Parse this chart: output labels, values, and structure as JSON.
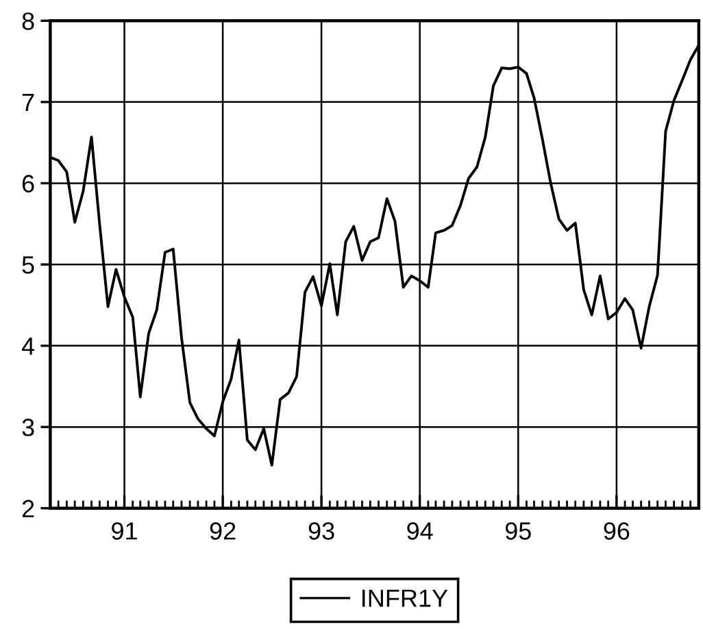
{
  "chart_data": {
    "type": "line",
    "x": [
      "1990-04",
      "1990-05",
      "1990-06",
      "1990-07",
      "1990-08",
      "1990-09",
      "1990-10",
      "1990-11",
      "1990-12",
      "1991-01",
      "1991-02",
      "1991-03",
      "1991-04",
      "1991-05",
      "1991-06",
      "1991-07",
      "1991-08",
      "1991-09",
      "1991-10",
      "1991-11",
      "1991-12",
      "1992-01",
      "1992-02",
      "1992-03",
      "1992-04",
      "1992-05",
      "1992-06",
      "1992-07",
      "1992-08",
      "1992-09",
      "1992-10",
      "1992-11",
      "1992-12",
      "1993-01",
      "1993-02",
      "1993-03",
      "1993-04",
      "1993-05",
      "1993-06",
      "1993-07",
      "1993-08",
      "1993-09",
      "1993-10",
      "1993-11",
      "1993-12",
      "1994-01",
      "1994-02",
      "1994-03",
      "1994-04",
      "1994-05",
      "1994-06",
      "1994-07",
      "1994-08",
      "1994-09",
      "1994-10",
      "1994-11",
      "1994-12",
      "1995-01",
      "1995-02",
      "1995-03",
      "1995-04",
      "1995-05",
      "1995-06",
      "1995-07",
      "1995-08",
      "1995-09",
      "1995-10",
      "1995-11",
      "1995-12",
      "1996-01",
      "1996-02",
      "1996-03",
      "1996-04",
      "1996-05",
      "1996-06",
      "1996-07",
      "1996-08",
      "1996-09",
      "1996-10",
      "1996-11"
    ],
    "series": [
      {
        "name": "INFR1Y",
        "color": "#000000",
        "values": [
          6.32,
          6.28,
          6.14,
          5.52,
          5.9,
          6.57,
          5.5,
          4.48,
          4.94,
          4.6,
          4.35,
          3.37,
          4.15,
          4.44,
          5.15,
          5.19,
          4.1,
          3.3,
          3.1,
          2.98,
          2.89,
          3.31,
          3.59,
          4.07,
          2.84,
          2.72,
          2.98,
          2.53,
          3.34,
          3.42,
          3.62,
          4.66,
          4.85,
          4.49,
          5.01,
          4.38,
          5.28,
          5.47,
          5.05,
          5.28,
          5.33,
          5.81,
          5.53,
          4.72,
          4.86,
          4.8,
          4.72,
          5.39,
          5.42,
          5.48,
          5.73,
          6.06,
          6.2,
          6.57,
          7.2,
          7.42,
          7.41,
          7.43,
          7.35,
          7.05,
          6.54,
          6.01,
          5.56,
          5.42,
          5.51,
          4.69,
          4.38,
          4.86,
          4.33,
          4.41,
          4.58,
          4.44,
          3.97,
          4.48,
          4.87,
          6.64,
          7.02,
          7.27,
          7.52,
          7.7
        ]
      }
    ],
    "xlim": [
      "1990-04",
      "1996-11"
    ],
    "xticks": [
      {
        "value": "1991",
        "label": "91"
      },
      {
        "value": "1992",
        "label": "92"
      },
      {
        "value": "1993",
        "label": "93"
      },
      {
        "value": "1994",
        "label": "94"
      },
      {
        "value": "1995",
        "label": "95"
      },
      {
        "value": "1996",
        "label": "96"
      }
    ],
    "ylim": [
      2,
      8
    ],
    "yticks": [
      2,
      3,
      4,
      5,
      6,
      7,
      8
    ],
    "grid": true,
    "legend": "bottom",
    "line_style": "solid"
  }
}
